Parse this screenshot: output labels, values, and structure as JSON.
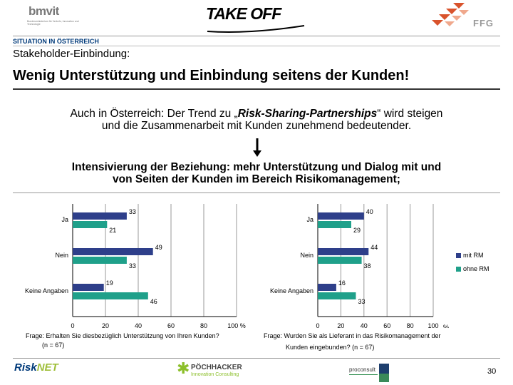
{
  "header": {
    "logo_left": "bmvit",
    "logo_left_sub": "Bundesministerium für Verkehr, Innovation und Technologie",
    "logo_center": "TAKE OFF",
    "logo_right": "FFG",
    "section_label": "SITUATION IN ÖSTERREICH"
  },
  "slide": {
    "subtitle": "Stakeholder-Einbindung:",
    "title": "Wenig Unterstützung und Einbindung seitens der Kunden!",
    "intro_line1_a": "Auch in Österreich: ",
    "intro_line1_b": "Der Trend zu „",
    "intro_line1_c": "Risk-Sharing-Partnerships",
    "intro_line1_d": "“ wird steigen",
    "intro_line2": "und die Zusammenarbeit mit Kunden zunehmend bedeutender.",
    "intens_line1": "Intensivierung der Beziehung: mehr Unterstützung und Dialog mit und",
    "intens_line2": "von Seiten der Kunden im Bereich Risikomanagement;"
  },
  "legend": [
    {
      "label": "mit RM",
      "color": "#2e3f8a"
    },
    {
      "label": "ohne RM",
      "color": "#1fa08a"
    }
  ],
  "questions": {
    "left_line1": "Frage: Erhalten Sie diesbezüglich Unterstützung von Ihren Kunden?",
    "left_line2": "(n = 67)",
    "right_line1": "Frage: Wurden Sie als Lieferant in das Risikomanagement der",
    "right_line2": "Kunden eingebunden? (n = 67)"
  },
  "footer": {
    "risknet_a": "Risk",
    "risknet_b": "NET",
    "poechhacker_name": "PÖCHHACKER",
    "poechhacker_tag": "Innovation Consulting",
    "proconsult": "proconsult",
    "page_number": "30"
  },
  "chart_data": [
    {
      "type": "bar",
      "orientation": "horizontal",
      "categories": [
        "Ja",
        "Nein",
        "Keine Angaben"
      ],
      "series": [
        {
          "name": "mit RM",
          "values": [
            33,
            49,
            19
          ],
          "color": "#2e3f8a"
        },
        {
          "name": "ohne RM",
          "values": [
            21,
            33,
            46
          ],
          "color": "#1fa08a"
        }
      ],
      "xlim": [
        0,
        100
      ],
      "xticks": [
        "0",
        "20",
        "40",
        "60",
        "80",
        "100 %"
      ],
      "grid": true
    },
    {
      "type": "bar",
      "orientation": "horizontal",
      "categories": [
        "Ja",
        "Nein",
        "Keine Angaben"
      ],
      "series": [
        {
          "name": "mit RM",
          "values": [
            40,
            44,
            16
          ],
          "color": "#2e3f8a"
        },
        {
          "name": "ohne RM",
          "values": [
            29,
            38,
            33
          ],
          "color": "#1fa08a"
        }
      ],
      "xlim": [
        0,
        100
      ],
      "xticks": [
        "0",
        "20",
        "40",
        "60",
        "80",
        "100"
      ],
      "xunit": "%",
      "grid": true
    }
  ]
}
